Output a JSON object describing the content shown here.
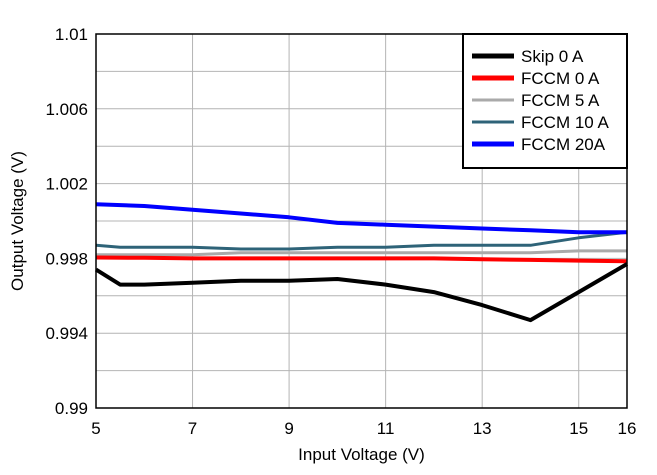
{
  "chart_data": {
    "type": "line",
    "title": "",
    "xlabel": "Input Voltage (V)",
    "ylabel": "Output Voltage (V)",
    "xlim": [
      5,
      16
    ],
    "ylim": [
      0.99,
      1.01
    ],
    "x_ticks": [
      5,
      7,
      9,
      11,
      13,
      15,
      16
    ],
    "x_tick_labels": [
      "5",
      "7",
      "9",
      "11",
      "13",
      "15",
      "16"
    ],
    "y_ticks": [
      0.99,
      0.994,
      0.998,
      1.002,
      1.006,
      1.01
    ],
    "y_tick_labels": [
      "0.99",
      "0.994",
      "0.998",
      "1.002",
      "1.006",
      "1.01"
    ],
    "x_gridlines": [
      5,
      7,
      9,
      11,
      13,
      15,
      16
    ],
    "y_gridlines": [
      0.99,
      0.992,
      0.994,
      0.996,
      0.998,
      1.0,
      1.002,
      1.004,
      1.006,
      1.008,
      1.01
    ],
    "grid": true,
    "legend_position": "top-right",
    "series": [
      {
        "name": "Skip 0 A",
        "color": "#000000",
        "x": [
          5,
          5.5,
          6,
          7,
          8,
          9,
          10,
          11,
          12,
          13,
          14,
          15,
          16
        ],
        "y": [
          0.9974,
          0.9966,
          0.9966,
          0.9967,
          0.9968,
          0.9968,
          0.9969,
          0.9966,
          0.9962,
          0.9955,
          0.9947,
          0.9962,
          0.9977
        ]
      },
      {
        "name": "FCCM 0 A",
        "color": "#ff0000",
        "x": [
          5,
          6,
          7,
          8,
          9,
          10,
          11,
          12,
          13,
          14,
          15,
          16
        ],
        "y": [
          0.99805,
          0.99803,
          0.998,
          0.998,
          0.998,
          0.998,
          0.998,
          0.998,
          0.99795,
          0.99792,
          0.99788,
          0.99785
        ]
      },
      {
        "name": "FCCM 5 A",
        "color": "#aaaaaa",
        "x": [
          5,
          6,
          7,
          8,
          9,
          10,
          11,
          12,
          13,
          14,
          15,
          16
        ],
        "y": [
          0.9982,
          0.9982,
          0.9982,
          0.9983,
          0.9983,
          0.9983,
          0.9983,
          0.9983,
          0.9983,
          0.9983,
          0.9984,
          0.9984
        ]
      },
      {
        "name": "FCCM 10 A",
        "color": "#2e6378",
        "x": [
          5,
          5.5,
          6,
          7,
          8,
          9,
          10,
          11,
          12,
          13,
          14,
          15,
          16
        ],
        "y": [
          0.9987,
          0.9986,
          0.9986,
          0.9986,
          0.9985,
          0.9985,
          0.9986,
          0.9986,
          0.9987,
          0.9987,
          0.9987,
          0.9991,
          0.9994
        ]
      },
      {
        "name": "FCCM 20A",
        "color": "#0000ff",
        "x": [
          5,
          6,
          7,
          8,
          9,
          10,
          11,
          12,
          13,
          14,
          15,
          16
        ],
        "y": [
          1.0009,
          1.0008,
          1.0006,
          1.0004,
          1.0002,
          0.9999,
          0.9998,
          0.9997,
          0.9996,
          0.9995,
          0.9994,
          0.9994
        ]
      }
    ]
  }
}
